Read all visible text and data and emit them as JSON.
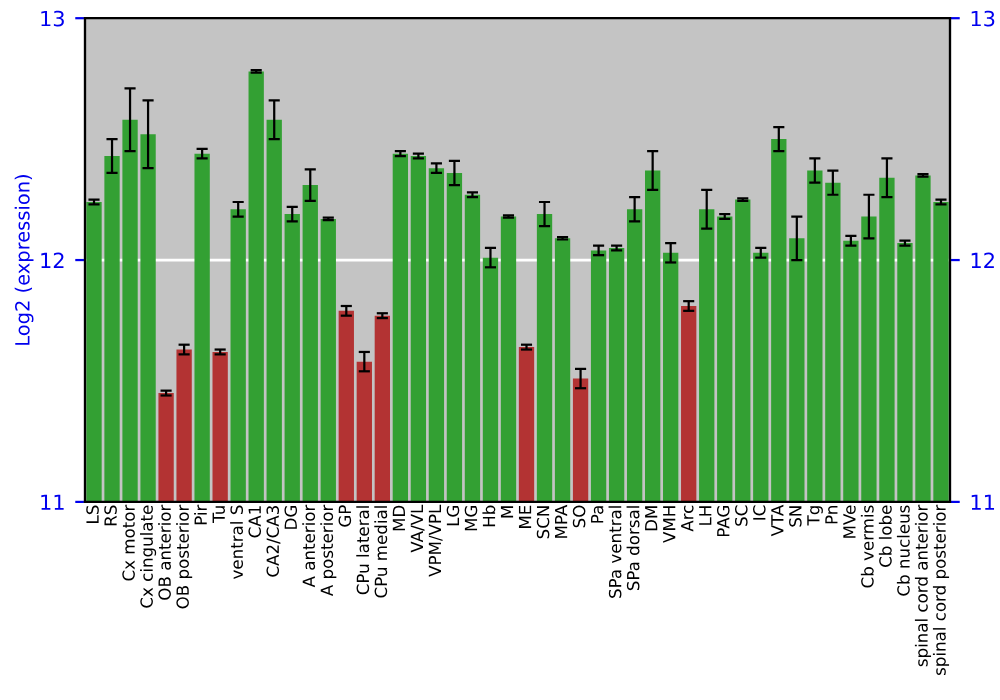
{
  "chart_data": {
    "type": "bar",
    "ylabel": "Log2 (expression)",
    "categories": [
      "LS",
      "RS",
      "Cx motor",
      "Cx cingulate",
      "OB anterior",
      "OB posterior",
      "Pir",
      "Tu",
      "ventral S",
      "CA1",
      "CA2/CA3",
      "DG",
      "A anterior",
      "A posterior",
      "GP",
      "CPu lateral",
      "CPu medial",
      "MD",
      "VA/VL",
      "VPM/VPL",
      "LG",
      "MG",
      "Hb",
      "M",
      "ME",
      "SCN",
      "MPA",
      "SO",
      "Pa",
      "SPa ventral",
      "SPa dorsal",
      "DM",
      "VMH",
      "Arc",
      "LH",
      "PAG",
      "SC",
      "IC",
      "VTA",
      "SN",
      "Tg",
      "Pn",
      "MVe",
      "Cb vermis",
      "Cb lobe",
      "Cb nucleus",
      "spinal cord anterior",
      "spinal cord posterior"
    ],
    "values": [
      12.24,
      12.43,
      12.58,
      12.52,
      11.45,
      11.63,
      12.44,
      11.62,
      12.21,
      12.78,
      12.58,
      12.19,
      12.31,
      12.17,
      11.79,
      11.58,
      11.77,
      12.44,
      12.43,
      12.38,
      12.36,
      12.27,
      12.01,
      12.18,
      11.64,
      12.19,
      12.09,
      11.51,
      12.04,
      12.05,
      12.21,
      12.37,
      12.03,
      11.81,
      12.21,
      12.18,
      12.25,
      12.03,
      12.5,
      12.09,
      12.37,
      12.32,
      12.08,
      12.18,
      12.34,
      12.07,
      12.35,
      12.24
    ],
    "errors": [
      0.01,
      0.07,
      0.13,
      0.14,
      0.01,
      0.02,
      0.02,
      0.01,
      0.03,
      0.005,
      0.08,
      0.03,
      0.065,
      0.005,
      0.02,
      0.04,
      0.01,
      0.01,
      0.01,
      0.02,
      0.05,
      0.01,
      0.04,
      0.005,
      0.01,
      0.05,
      0.005,
      0.04,
      0.02,
      0.01,
      0.05,
      0.08,
      0.04,
      0.02,
      0.08,
      0.01,
      0.005,
      0.02,
      0.05,
      0.09,
      0.05,
      0.05,
      0.02,
      0.09,
      0.08,
      0.01,
      0.005,
      0.01
    ],
    "colors": [
      "#33a033",
      "#33a033",
      "#33a033",
      "#33a033",
      "#b33333",
      "#b33333",
      "#33a033",
      "#b33333",
      "#33a033",
      "#33a033",
      "#33a033",
      "#33a033",
      "#33a033",
      "#33a033",
      "#b33333",
      "#b33333",
      "#b33333",
      "#33a033",
      "#33a033",
      "#33a033",
      "#33a033",
      "#33a033",
      "#33a033",
      "#33a033",
      "#b33333",
      "#33a033",
      "#33a033",
      "#b33333",
      "#33a033",
      "#33a033",
      "#33a033",
      "#33a033",
      "#33a033",
      "#b33333",
      "#33a033",
      "#33a033",
      "#33a033",
      "#33a033",
      "#33a033",
      "#33a033",
      "#33a033",
      "#33a033",
      "#33a033",
      "#33a033",
      "#33a033",
      "#33a033",
      "#33a033",
      "#33a033"
    ],
    "ylim": [
      11,
      13
    ],
    "yticks": [
      11,
      12,
      13
    ],
    "y2lim": [
      11,
      13
    ],
    "y2ticks": [
      11,
      12,
      13
    ],
    "grid": "y"
  }
}
